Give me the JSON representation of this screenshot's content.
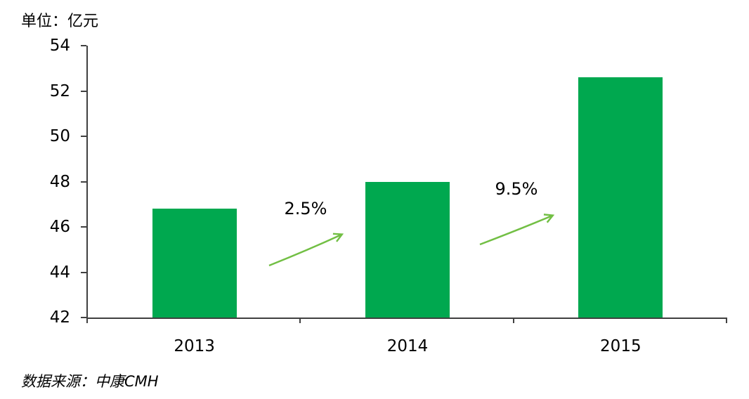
{
  "unit_label": "单位：亿元",
  "source_label": "数据来源：中康CMH",
  "chart_data": {
    "type": "bar",
    "title": "",
    "xlabel": "",
    "ylabel": "单位：亿元",
    "unit": "亿元",
    "categories": [
      "2013",
      "2014",
      "2015"
    ],
    "values": [
      46.8,
      48.0,
      52.6
    ],
    "yticks": [
      42,
      44,
      46,
      48,
      50,
      52,
      54
    ],
    "ylim": [
      42,
      54
    ],
    "grid": false,
    "legend": "none",
    "bar_color": "#00A84F",
    "arrow_color": "#72BF44",
    "axis_color": "#404040",
    "growth_annotations": [
      {
        "from": "2013",
        "to": "2014",
        "label": "2.5%"
      },
      {
        "from": "2014",
        "to": "2015",
        "label": "9.5%"
      }
    ],
    "source": "数据来源：中康CMH"
  }
}
